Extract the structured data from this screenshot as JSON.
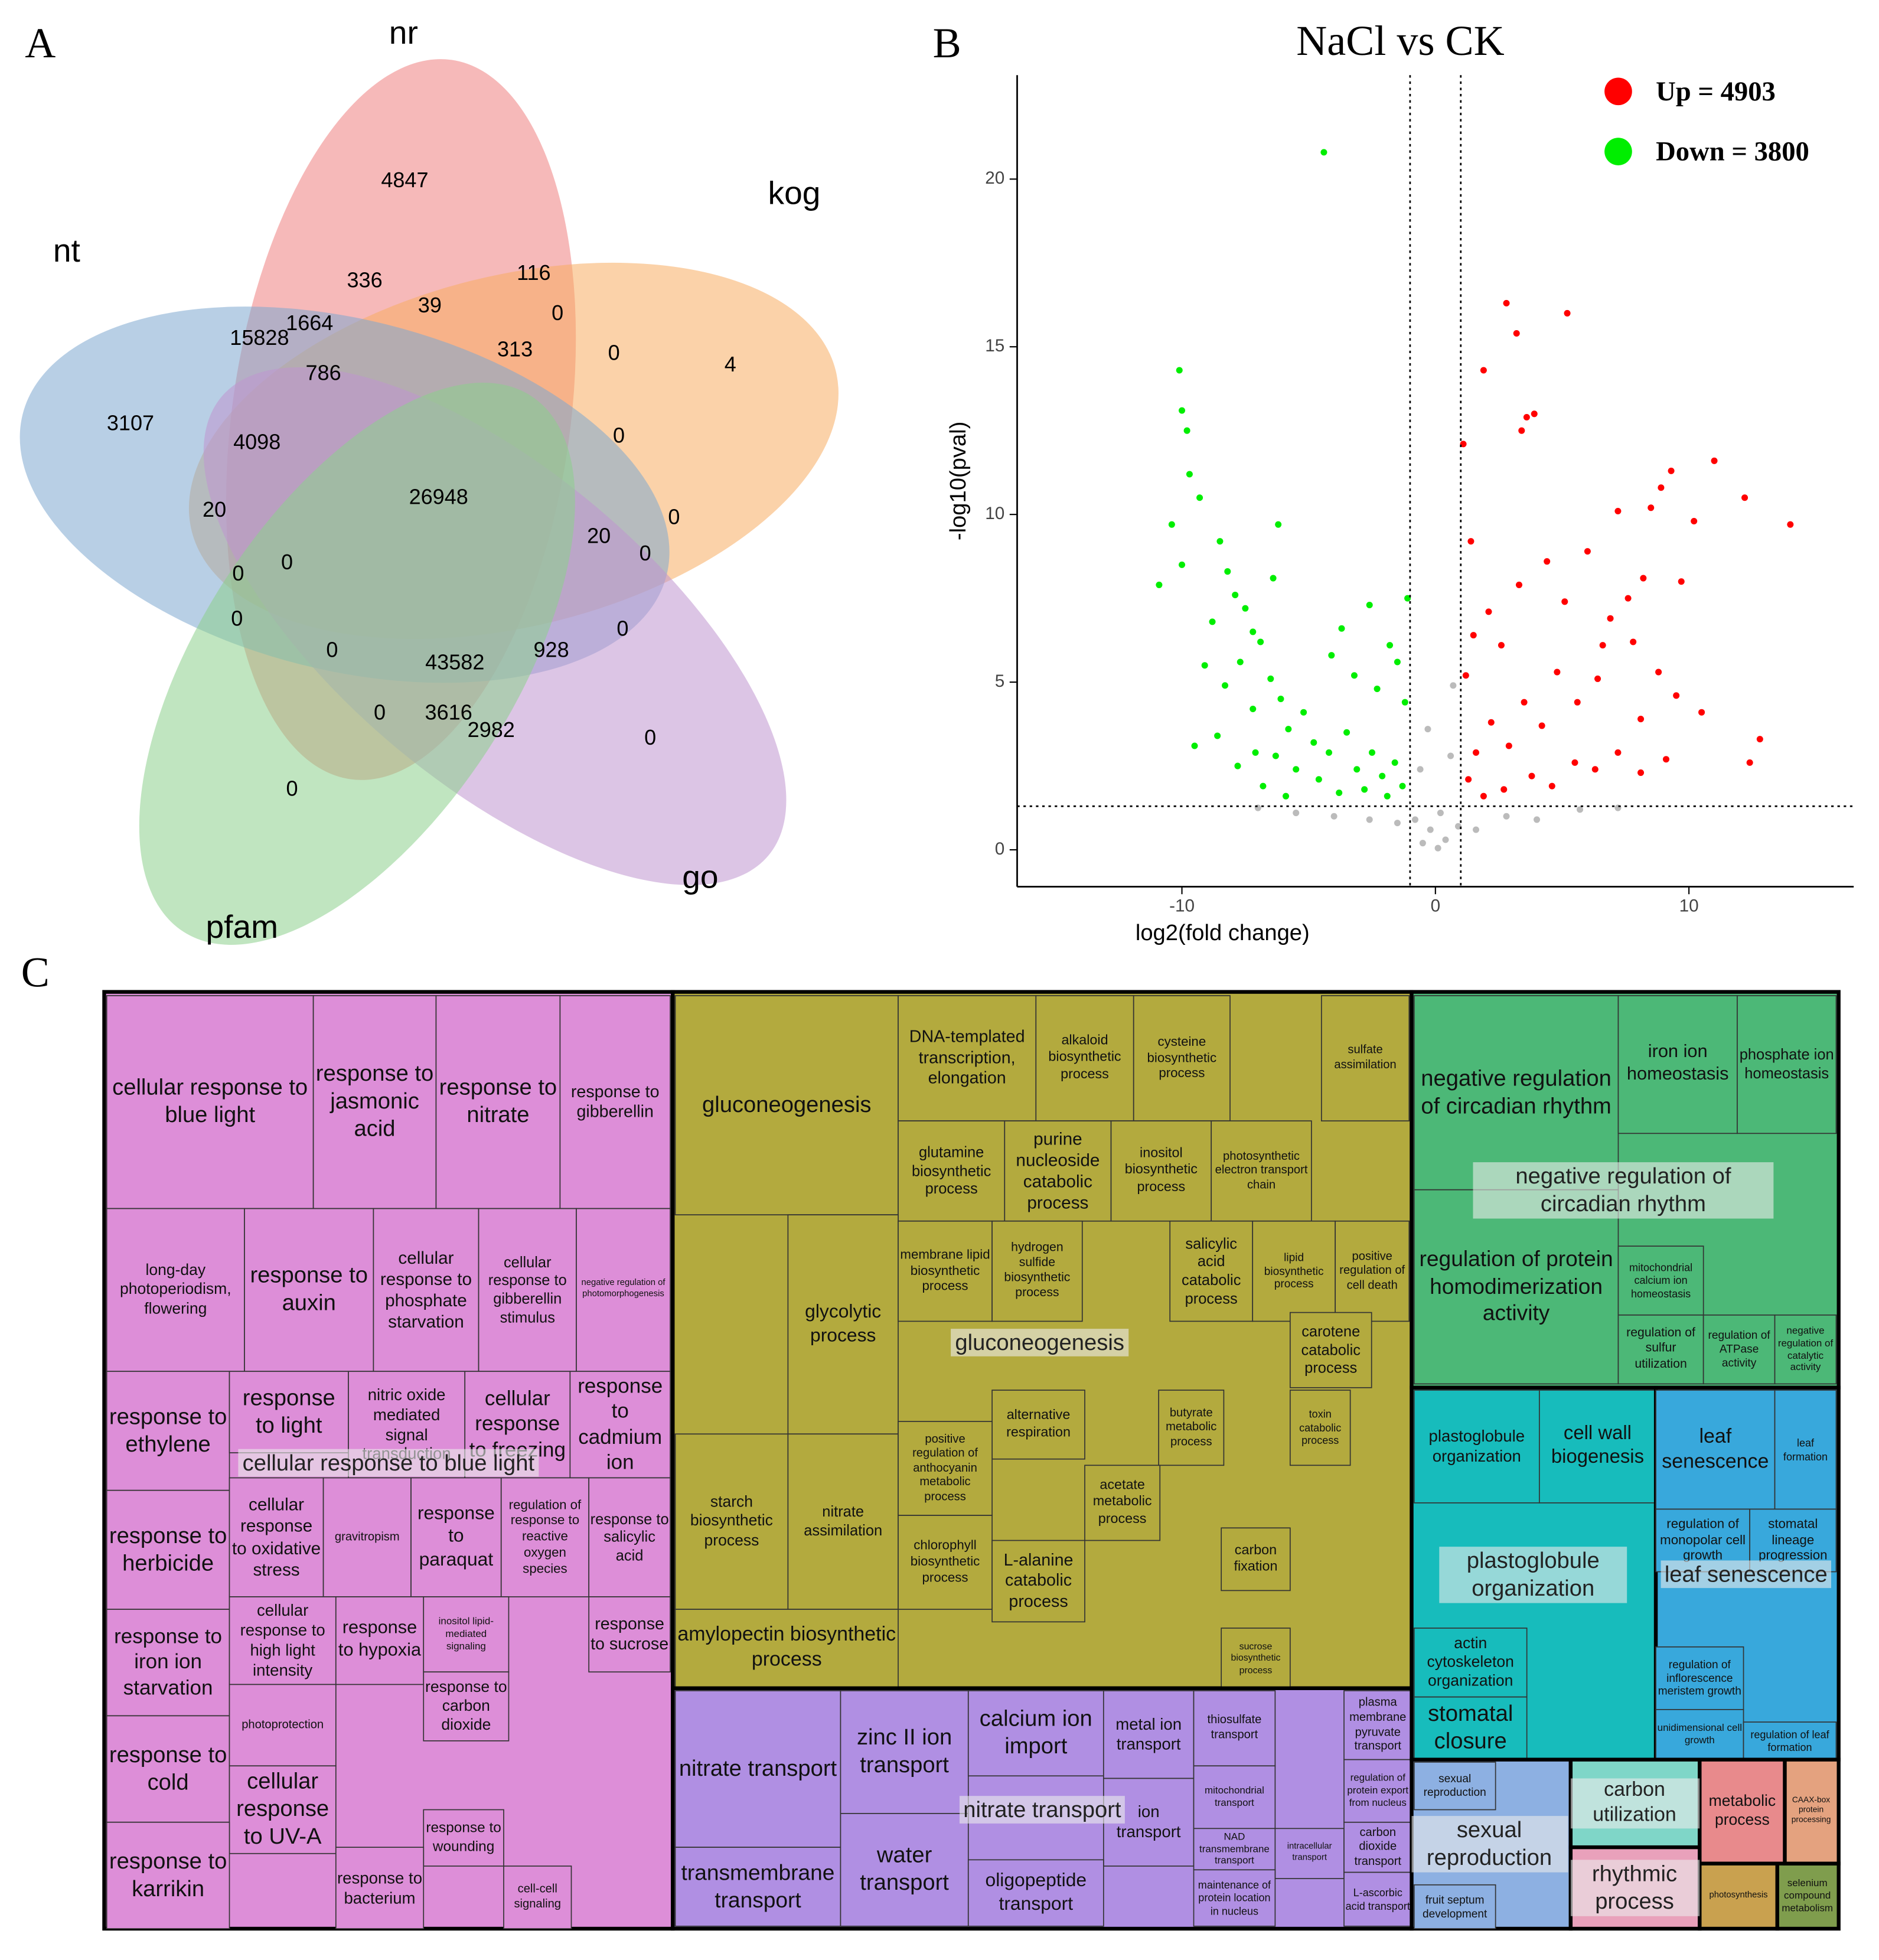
{
  "panels": [
    "A",
    "B",
    "C"
  ],
  "chart_data": [
    {
      "type": "venn",
      "sets": [
        {
          "name": "nr",
          "color": "#ef7f7f"
        },
        {
          "name": "kog",
          "color": "#f7ad62"
        },
        {
          "name": "nt",
          "color": "#7ea7cf"
        },
        {
          "name": "go",
          "color": "#bf95cf"
        },
        {
          "name": "pfam",
          "color": "#8ccf8c"
        }
      ],
      "values": [
        4847,
        336,
        116,
        39,
        0,
        15828,
        1664,
        313,
        0,
        4,
        786,
        3107,
        4098,
        0,
        26948,
        20,
        0,
        20,
        0,
        0,
        0,
        0,
        0,
        0,
        928,
        43582,
        0,
        3616,
        2982,
        0,
        0
      ]
    },
    {
      "type": "scatter",
      "title": "NaCl vs CK",
      "xlabel": "log2(fold change)",
      "ylabel": "-log10(pval)",
      "xlim": [
        -16.5,
        16.5
      ],
      "ylim": [
        -1.1,
        23.1
      ],
      "xticks": [
        -10,
        0,
        10
      ],
      "yticks": [
        0,
        5,
        10,
        15,
        20
      ],
      "vlines": [
        -1,
        1
      ],
      "hline": 1.3,
      "legend": "top-right",
      "series": [
        {
          "name": "Up = 4903",
          "color": "#ff0000",
          "x": [
            5.2,
            2.8,
            3.2,
            1.9,
            3.6,
            3.4,
            3.9,
            14,
            12.2,
            11,
            9.3,
            12.8,
            12.4,
            9.7,
            8.5,
            8.9,
            10.2,
            8.2,
            7.6,
            6.9,
            7.8,
            8.8,
            9.5,
            10.5,
            8.1,
            6.4,
            5.6,
            4.8,
            4.2,
            3.5,
            2.9,
            2.2,
            1.6,
            1.3,
            1.9,
            2.7,
            3.8,
            4.6,
            5.5,
            6.3,
            7.2,
            8.1,
            9.1,
            1.2,
            1.5,
            2.1,
            2.6,
            3.3,
            4.4,
            5.1,
            6,
            1.4,
            1.1,
            7.2,
            6.6
          ],
          "values": [
            16,
            16.3,
            15.4,
            14.3,
            12.9,
            12.5,
            13,
            9.7,
            10.5,
            11.6,
            11.3,
            3.3,
            2.6,
            8,
            10.2,
            10.8,
            9.8,
            8.1,
            7.5,
            6.9,
            6.2,
            5.3,
            4.6,
            4.1,
            3.9,
            5.1,
            4.4,
            5.3,
            3.7,
            4.4,
            3.1,
            3.8,
            2.9,
            2.1,
            1.6,
            1.8,
            2.2,
            1.9,
            2.6,
            2.4,
            2.9,
            2.3,
            2.7,
            5.2,
            6.4,
            7.1,
            6.1,
            7.9,
            8.6,
            7.4,
            8.9,
            9.2,
            12.1,
            10.1,
            6.1
          ]
        },
        {
          "name": "Down = 3800",
          "color": "#00ee00",
          "x": [
            -4.4,
            -10.1,
            -10,
            -9.8,
            -9.7,
            -9.3,
            -10.4,
            -10.9,
            -10,
            -8.5,
            -8.2,
            -7.9,
            -7.5,
            -7.2,
            -8.8,
            -9.1,
            -8.3,
            -7.7,
            -6.9,
            -6.5,
            -7.2,
            -8.6,
            -9.5,
            -6.1,
            -5.8,
            -5.2,
            -4.8,
            -4.2,
            -3.5,
            -3.1,
            -2.5,
            -2.1,
            -1.6,
            -1.3,
            -1.9,
            -2.8,
            -3.8,
            -4.6,
            -5.5,
            -6.3,
            -7.1,
            -7.8,
            -6.8,
            -5.9,
            -1.2,
            -1.5,
            -1.8,
            -2.3,
            -3.2,
            -4.1,
            -2.6,
            -1.1,
            -6.2,
            -6.4,
            -3.7
          ],
          "values": [
            20.8,
            14.3,
            13.1,
            12.5,
            11.2,
            10.5,
            9.7,
            7.9,
            8.5,
            9.2,
            8.3,
            7.6,
            7.2,
            6.5,
            6.8,
            5.5,
            4.9,
            5.6,
            6.2,
            5.1,
            4.2,
            3.4,
            3.1,
            4.5,
            3.6,
            4.1,
            3.2,
            2.9,
            3.5,
            2.4,
            2.9,
            2.2,
            2.6,
            1.9,
            1.6,
            1.8,
            1.7,
            2.1,
            2.4,
            2.8,
            2.9,
            2.5,
            1.9,
            1.6,
            4.4,
            5.6,
            6.1,
            4.8,
            5.2,
            5.8,
            7.3,
            7.5,
            9.7,
            8.1,
            6.6
          ]
        },
        {
          "color": "#bbbbbb",
          "x": [
            -0.5,
            0.4,
            -0.2,
            0.2,
            -0.8,
            0.9,
            -1.5,
            1.6,
            -2.6,
            2.8,
            -4,
            4,
            -5.5,
            5.7,
            -0.6,
            0.6,
            -0.3,
            0.7,
            -7,
            7.2,
            0.1
          ],
          "values": [
            0.2,
            0.3,
            0.6,
            1.1,
            0.9,
            0.7,
            0.8,
            0.6,
            0.9,
            1.0,
            1.0,
            0.9,
            1.1,
            1.2,
            2.4,
            2.8,
            3.6,
            4.9,
            1.25,
            1.25,
            0.05
          ]
        }
      ]
    },
    {
      "type": "treemap",
      "groups": [
        {
          "color": "#dd8ed8",
          "label": "cellular response to blue light",
          "tiles": [
            "cellular response to blue light",
            "response to jasmonic acid",
            "response to nitrate",
            "response to gibberellin",
            "long-day photoperiodism, flowering",
            "response to auxin",
            "cellular response to phosphate starvation",
            "cellular response to gibberellin stimulus",
            "negative regulation of photomorphogenesis",
            "response to ethylene",
            "response to light",
            "nitric oxide mediated signal transduction",
            "cellular response to freezing",
            "response to cadmium ion",
            "response to herbicide",
            "cellular response to oxidative stress",
            "gravitropism",
            "response to paraquat",
            "regulation of response to reactive oxygen species",
            "response to salicylic acid",
            "response to iron ion starvation",
            "cellular response to high light intensity",
            "response to hypoxia",
            "inositol lipid-mediated signaling",
            "response to sucrose",
            "response to cold",
            "photoprotection",
            "cellular response to UV-A",
            "response to carbon dioxide",
            "response to karrikin",
            "response to wounding",
            "response to bacterium",
            "cell-cell signaling"
          ]
        },
        {
          "color": "#b3aa3e",
          "label": "gluconeogenesis",
          "tiles": [
            "gluconeogenesis",
            "DNA-templated transcription, elongation",
            "alkaloid biosynthetic process",
            "cysteine biosynthetic process",
            "sulfate assimilation",
            "glutamine biosynthetic process",
            "purine nucleoside catabolic process",
            "inositol biosynthetic process",
            "photosynthetic electron transport chain",
            "glycolytic process",
            "membrane lipid biosynthetic process",
            "hydrogen sulfide biosynthetic process",
            "salicylic acid catabolic process",
            "lipid biosynthetic process",
            "positive regulation of cell death",
            "carotene catabolic process",
            "alternative respiration",
            "starch biosynthetic process",
            "nitrate assimilation",
            "positive regulation of anthocyanin metabolic process",
            "butyrate metabolic process",
            "toxin catabolic process",
            "acetate metabolic process",
            "chlorophyll biosynthetic process",
            "L-alanine catabolic process",
            "carbon fixation",
            "amylopectin biosynthetic process",
            "sucrose biosynthetic process"
          ]
        },
        {
          "color": "#b08fe3",
          "label": "nitrate transport",
          "tiles": [
            "nitrate transport",
            "zinc II ion transport",
            "calcium ion import",
            "metal ion transport",
            "thiosulfate transport",
            "plasma membrane pyruvate transport",
            "transmembrane transport",
            "water transport",
            "ion transport",
            "oligopeptide transport",
            "mitochondrial transport",
            "NAD transmembrane transport",
            "intracellular transport",
            "carbon dioxide transport",
            "maintenance of protein location in nucleus",
            "L-ascorbic acid transport",
            "regulation of protein export from nucleus"
          ]
        },
        {
          "color": "#4cb877",
          "label": "negative regulation of circadian rhythm",
          "tiles": [
            "negative regulation of circadian rhythm",
            "iron ion homeostasis",
            "phosphate ion homeostasis",
            "regulation of protein homodimerization activity",
            "mitochondrial calcium ion homeostasis",
            "regulation of sulfur utilization",
            "regulation of ATPase activity",
            "negative regulation of catalytic activity"
          ]
        },
        {
          "color": "#17bcbc",
          "label": "plastoglobule organization",
          "tiles": [
            "plastoglobule organization",
            "cell wall biogenesis",
            "actin cytoskeleton organization",
            "stomatal closure"
          ]
        },
        {
          "color": "#38a8dc",
          "label": "leaf senescence",
          "tiles": [
            "leaf senescence",
            "leaf formation",
            "regulation of monopolar cell growth",
            "stomatal lineage progression",
            "regulation of inflorescence meristem growth",
            "unidimensional cell growth",
            "regulation of leaf formation"
          ]
        },
        {
          "color": "#8db0e2",
          "label": "sexual reproduction",
          "tiles": [
            "sexual reproduction",
            "fruit septum development"
          ]
        },
        {
          "color": "#7fd6c8",
          "label": "carbon utilization",
          "tiles": []
        },
        {
          "color": "#e9a1bb",
          "label": "rhythmic process",
          "tiles": []
        },
        {
          "color": "#e88a8c",
          "label": "metabolic process",
          "tiles": []
        },
        {
          "color": "#c9a14f",
          "label": "photosynthesis",
          "tiles": []
        },
        {
          "color": "#7f9d4d",
          "label": "selenium compound metabolism",
          "tiles": []
        },
        {
          "color": "#e4a27f",
          "label": "CAAX-box protein processing",
          "tiles": []
        }
      ]
    }
  ]
}
